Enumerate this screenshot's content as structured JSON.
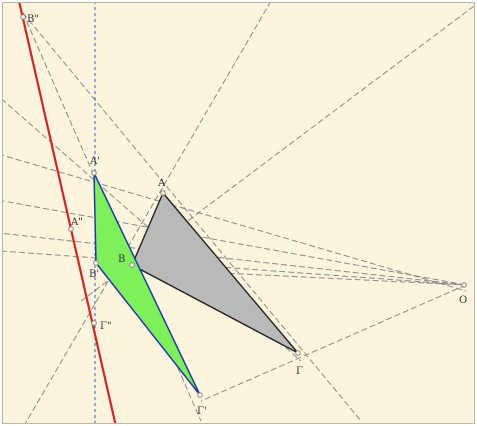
{
  "colors": {
    "background": "#fdf4dd",
    "construction_line": "#8a8a8a",
    "axis_line": "#2b62c9",
    "red_line": "#d42424",
    "triangle_gray_fill": "#b9b9b9",
    "triangle_green_fill": "#7ef05a",
    "triangle_green_edge": "#1e3aa8",
    "point": "#8a8a8a"
  },
  "points": {
    "A": {
      "label": "A"
    },
    "B": {
      "label": "B"
    },
    "G": {
      "label": "Γ"
    },
    "A1": {
      "label": "A'"
    },
    "B1": {
      "label": "B'"
    },
    "G1": {
      "label": "Γ'"
    },
    "A2": {
      "label": "A\""
    },
    "B2": {
      "label": "B\""
    },
    "G2": {
      "label": "Γ\""
    },
    "O": {
      "label": "O"
    }
  }
}
